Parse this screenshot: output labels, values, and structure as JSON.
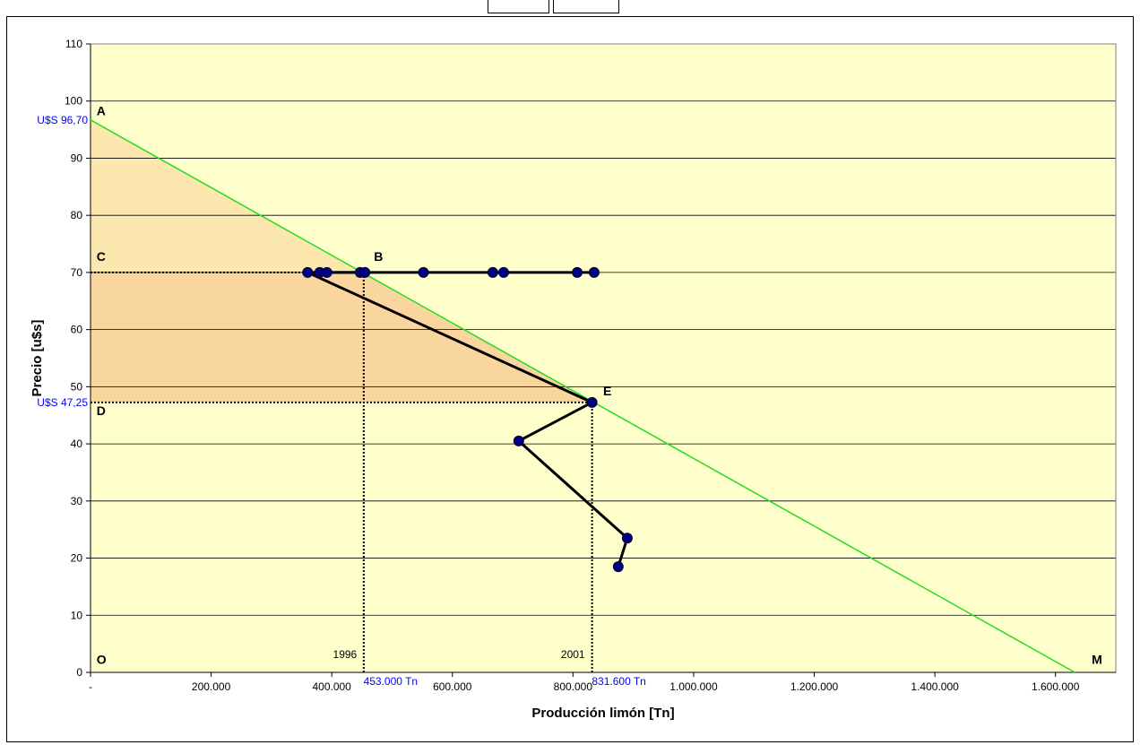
{
  "chart_data": {
    "type": "scatter",
    "xlabel": "Producción limón [Tn]",
    "ylabel": "Precio [u$s]",
    "xlim": [
      0,
      1700000
    ],
    "ylim": [
      0,
      110
    ],
    "x_ticks": [
      0,
      200000,
      400000,
      600000,
      800000,
      1000000,
      1200000,
      1400000,
      1600000
    ],
    "x_tick_labels": [
      "-",
      "200.000",
      "400.000",
      "600.000",
      "800.000",
      "1.000.000",
      "1.200.000",
      "1.400.000",
      "1.600.000"
    ],
    "y_ticks": [
      0,
      10,
      20,
      30,
      40,
      50,
      60,
      70,
      80,
      90,
      100,
      110
    ],
    "y_tick_labels": [
      "0",
      "10",
      "20",
      "30",
      "40",
      "50",
      "60",
      "70",
      "80",
      "90",
      "100",
      "110"
    ],
    "grid": "horizontal",
    "demand_line": {
      "x": [
        0,
        1632000
      ],
      "y": [
        96.7,
        0
      ],
      "color": "#22dd22"
    },
    "price_path": {
      "x": [
        453000,
        360000,
        831600,
        710000,
        890000,
        875000
      ],
      "y": [
        70,
        70,
        47.25,
        40.5,
        23.5,
        18.5
      ]
    },
    "horizontal_segment": {
      "x": [
        360000,
        840000
      ],
      "y": 70
    },
    "points": [
      {
        "x": 360000,
        "y": 70
      },
      {
        "x": 380000,
        "y": 70
      },
      {
        "x": 392000,
        "y": 70
      },
      {
        "x": 447000,
        "y": 70
      },
      {
        "x": 455000,
        "y": 70
      },
      {
        "x": 552000,
        "y": 70
      },
      {
        "x": 667000,
        "y": 70
      },
      {
        "x": 685000,
        "y": 70
      },
      {
        "x": 807000,
        "y": 70
      },
      {
        "x": 835000,
        "y": 70
      },
      {
        "x": 831600,
        "y": 47.25
      },
      {
        "x": 710000,
        "y": 40.5
      },
      {
        "x": 890000,
        "y": 23.5
      },
      {
        "x": 875000,
        "y": 18.5
      }
    ],
    "reference_lines": [
      {
        "axis": "y",
        "value": 70,
        "from_x": 0,
        "to_x": 453000
      },
      {
        "axis": "y",
        "value": 47.25,
        "from_x": 0,
        "to_x": 831600
      },
      {
        "axis": "x",
        "value": 453000,
        "from_y": 0,
        "to_y": 70
      },
      {
        "axis": "x",
        "value": 831600,
        "from_y": 0,
        "to_y": 47.25
      }
    ],
    "shaded_regions": [
      {
        "name": "upper-triangle",
        "polygon": [
          [
            0,
            96.7
          ],
          [
            0,
            70
          ],
          [
            453000,
            70
          ]
        ],
        "color": "#fbe3a8"
      },
      {
        "name": "lower-triangle",
        "polygon": [
          [
            0,
            70
          ],
          [
            0,
            47.25
          ],
          [
            831600,
            47.25
          ],
          [
            453000,
            70
          ]
        ],
        "color": "#f9cf96"
      }
    ],
    "annotations": [
      {
        "text": "A",
        "x": 10000,
        "y": 97.5
      },
      {
        "text": "B",
        "x": 470000,
        "y": 72
      },
      {
        "text": "C",
        "x": 10000,
        "y": 72
      },
      {
        "text": "D",
        "x": 10000,
        "y": 45
      },
      {
        "text": "E",
        "x": 850000,
        "y": 48.5
      },
      {
        "text": "O",
        "x": 10000,
        "y": 1.5
      },
      {
        "text": "M",
        "x": 1660000,
        "y": 1.5
      },
      {
        "text": "1996",
        "x": 402000,
        "y": 2.5
      },
      {
        "text": "2001",
        "x": 780000,
        "y": 2.5
      }
    ],
    "value_labels": [
      {
        "text": "U$S 96,70",
        "axis": "y",
        "value": 96.7
      },
      {
        "text": "U$S 47,25",
        "axis": "y",
        "value": 47.25
      },
      {
        "text": "453.000 Tn",
        "axis": "x",
        "value": 453000
      },
      {
        "text": "831.600 Tn",
        "axis": "x",
        "value": 831600
      }
    ],
    "colors": {
      "plot_background": "#ffffcc",
      "points": "#000080",
      "path": "#000000",
      "value_labels": "#0000ff"
    }
  }
}
